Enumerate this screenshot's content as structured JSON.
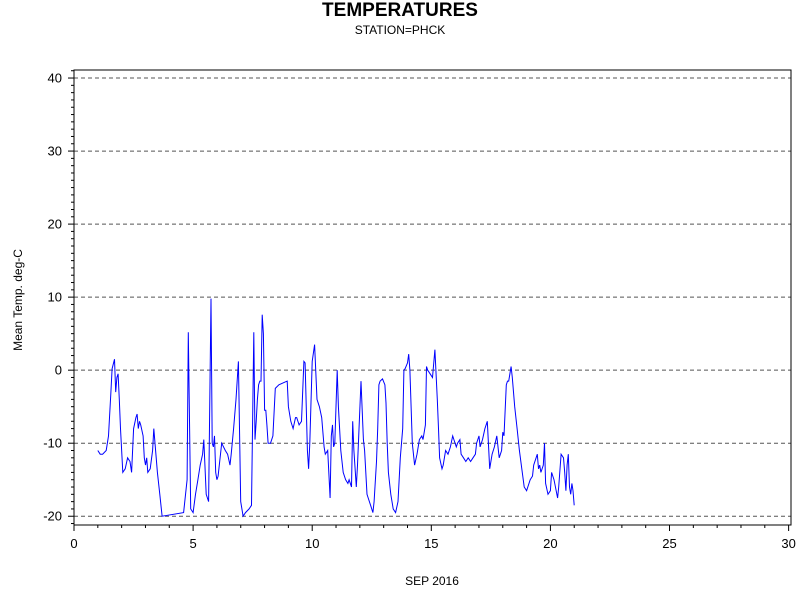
{
  "chart_data": {
    "type": "line",
    "title": "TEMPERATURES",
    "subtitle": "STATION=PHCK",
    "xlabel": "SEP 2016",
    "ylabel": "Mean Temp. deg-C",
    "xlim": [
      0,
      30.1
    ],
    "ylim": [
      -21.2,
      41.1
    ],
    "xticks": [
      0,
      5,
      10,
      15,
      20,
      25,
      30
    ],
    "yticks": [
      -20,
      -10,
      0,
      10,
      20,
      30,
      40
    ],
    "grid": "horizontal dashed",
    "line_color": "#0000ff",
    "series": [
      {
        "values": [
          [
            1.0,
            -11.0
          ],
          [
            1.1,
            -11.5
          ],
          [
            1.2,
            -11.5
          ],
          [
            1.35,
            -11.0
          ],
          [
            1.45,
            -9.0
          ],
          [
            1.55,
            -3.0
          ],
          [
            1.6,
            0.2
          ],
          [
            1.7,
            1.5
          ],
          [
            1.75,
            -3.0
          ],
          [
            1.8,
            -1.0
          ],
          [
            1.85,
            -0.5
          ],
          [
            1.9,
            -4.0
          ],
          [
            1.95,
            -8.0
          ],
          [
            2.05,
            -14.0
          ],
          [
            2.15,
            -13.5
          ],
          [
            2.25,
            -12.0
          ],
          [
            2.35,
            -12.5
          ],
          [
            2.42,
            -14.0
          ],
          [
            2.5,
            -8.0
          ],
          [
            2.6,
            -6.5
          ],
          [
            2.65,
            -6.0
          ],
          [
            2.7,
            -8.0
          ],
          [
            2.75,
            -7.0
          ],
          [
            2.8,
            -7.5
          ],
          [
            2.9,
            -9.0
          ],
          [
            2.95,
            -12.0
          ],
          [
            3.0,
            -13.0
          ],
          [
            3.05,
            -12.0
          ],
          [
            3.1,
            -14.0
          ],
          [
            3.2,
            -13.5
          ],
          [
            3.3,
            -11.0
          ],
          [
            3.35,
            -8.0
          ],
          [
            3.45,
            -12.0
          ],
          [
            3.5,
            -14.0
          ],
          [
            3.6,
            -17.0
          ],
          [
            3.7,
            -20.0
          ],
          [
            4.6,
            -19.5
          ],
          [
            4.75,
            -15.0
          ],
          [
            4.8,
            5.2
          ],
          [
            4.9,
            -19.0
          ],
          [
            5.0,
            -19.5
          ],
          [
            5.1,
            -17.0
          ],
          [
            5.2,
            -15.0
          ],
          [
            5.3,
            -13.0
          ],
          [
            5.4,
            -11.5
          ],
          [
            5.45,
            -9.5
          ],
          [
            5.55,
            -17.0
          ],
          [
            5.65,
            -18.0
          ],
          [
            5.75,
            9.8
          ],
          [
            5.8,
            -10.0
          ],
          [
            5.85,
            -10.5
          ],
          [
            5.9,
            -9.0
          ],
          [
            5.95,
            -14.0
          ],
          [
            6.0,
            -15.0
          ],
          [
            6.05,
            -14.5
          ],
          [
            6.1,
            -13.0
          ],
          [
            6.2,
            -10.0
          ],
          [
            6.35,
            -11.0
          ],
          [
            6.45,
            -11.5
          ],
          [
            6.55,
            -13.0
          ],
          [
            6.6,
            -11.5
          ],
          [
            6.7,
            -8.0
          ],
          [
            6.8,
            -4.0
          ],
          [
            6.9,
            1.2
          ],
          [
            7.0,
            -18.0
          ],
          [
            7.1,
            -20.0
          ],
          [
            7.2,
            -19.5
          ],
          [
            7.35,
            -19.0
          ],
          [
            7.45,
            -18.5
          ],
          [
            7.55,
            5.2
          ],
          [
            7.6,
            -9.5
          ],
          [
            7.65,
            -7.0
          ],
          [
            7.7,
            -4.0
          ],
          [
            7.75,
            -2.0
          ],
          [
            7.8,
            -1.5
          ],
          [
            7.85,
            -1.5
          ],
          [
            7.9,
            7.6
          ],
          [
            7.95,
            5.0
          ],
          [
            8.0,
            -5.5
          ],
          [
            8.05,
            -5.5
          ],
          [
            8.1,
            -7.5
          ],
          [
            8.15,
            -10.0
          ],
          [
            8.25,
            -10.0
          ],
          [
            8.35,
            -9.0
          ],
          [
            8.45,
            -2.5
          ],
          [
            8.6,
            -2.0
          ],
          [
            8.95,
            -1.5
          ],
          [
            9.0,
            -5.0
          ],
          [
            9.1,
            -7.0
          ],
          [
            9.2,
            -8.0
          ],
          [
            9.3,
            -6.5
          ],
          [
            9.35,
            -6.5
          ],
          [
            9.45,
            -7.5
          ],
          [
            9.55,
            -7.0
          ],
          [
            9.65,
            1.2
          ],
          [
            9.7,
            1.0
          ],
          [
            9.8,
            -11.0
          ],
          [
            9.85,
            -13.5
          ],
          [
            9.9,
            -10.0
          ],
          [
            10.0,
            1.2
          ],
          [
            10.1,
            3.5
          ],
          [
            10.2,
            -4.0
          ],
          [
            10.3,
            -5.0
          ],
          [
            10.4,
            -6.5
          ],
          [
            10.5,
            -10.5
          ],
          [
            10.55,
            -11.5
          ],
          [
            10.65,
            -11.0
          ],
          [
            10.75,
            -17.5
          ],
          [
            10.8,
            -9.0
          ],
          [
            10.85,
            -7.5
          ],
          [
            10.9,
            -10.5
          ],
          [
            10.95,
            -10.0
          ],
          [
            11.05,
            0.0
          ],
          [
            11.1,
            -5.0
          ],
          [
            11.2,
            -11.0
          ],
          [
            11.3,
            -14.0
          ],
          [
            11.4,
            -15.0
          ],
          [
            11.5,
            -15.5
          ],
          [
            11.55,
            -15.0
          ],
          [
            11.65,
            -16.0
          ],
          [
            11.7,
            -7.0
          ],
          [
            11.75,
            -11.0
          ],
          [
            11.85,
            -16.0
          ],
          [
            11.9,
            -13.0
          ],
          [
            12.05,
            -1.5
          ],
          [
            12.15,
            -9.5
          ],
          [
            12.2,
            -11.0
          ],
          [
            12.3,
            -17.0
          ],
          [
            12.35,
            -17.5
          ],
          [
            12.45,
            -18.5
          ],
          [
            12.55,
            -19.5
          ],
          [
            12.6,
            -18.0
          ],
          [
            12.7,
            -12.5
          ],
          [
            12.75,
            -8.0
          ],
          [
            12.8,
            -2.0
          ],
          [
            12.85,
            -1.5
          ],
          [
            12.95,
            -1.2
          ],
          [
            13.05,
            -2.0
          ],
          [
            13.1,
            -4.5
          ],
          [
            13.15,
            -10.0
          ],
          [
            13.2,
            -14.0
          ],
          [
            13.3,
            -17.0
          ],
          [
            13.4,
            -19.0
          ],
          [
            13.5,
            -19.5
          ],
          [
            13.6,
            -18.0
          ],
          [
            13.7,
            -12.0
          ],
          [
            13.8,
            -8.0
          ],
          [
            13.85,
            0.0
          ],
          [
            13.9,
            0.2
          ],
          [
            14.0,
            1.0
          ],
          [
            14.05,
            2.2
          ],
          [
            14.1,
            0.0
          ],
          [
            14.2,
            -10.0
          ],
          [
            14.3,
            -13.0
          ],
          [
            14.4,
            -11.5
          ],
          [
            14.5,
            -9.5
          ],
          [
            14.6,
            -9.0
          ],
          [
            14.65,
            -9.5
          ],
          [
            14.75,
            -7.5
          ],
          [
            14.8,
            0.5
          ],
          [
            14.85,
            0.0
          ],
          [
            14.95,
            -0.5
          ],
          [
            15.05,
            -1.0
          ],
          [
            15.15,
            2.8
          ],
          [
            15.25,
            -4.0
          ],
          [
            15.3,
            -8.0
          ],
          [
            15.35,
            -12.0
          ],
          [
            15.45,
            -13.5
          ],
          [
            15.5,
            -13.0
          ],
          [
            15.6,
            -11.0
          ],
          [
            15.7,
            -11.5
          ],
          [
            15.8,
            -10.5
          ],
          [
            15.9,
            -9.0
          ],
          [
            15.95,
            -9.5
          ],
          [
            16.05,
            -10.5
          ],
          [
            16.1,
            -10.0
          ],
          [
            16.2,
            -9.5
          ],
          [
            16.25,
            -11.5
          ],
          [
            16.35,
            -12.0
          ],
          [
            16.45,
            -12.5
          ],
          [
            16.55,
            -12.0
          ],
          [
            16.65,
            -12.5
          ],
          [
            16.75,
            -12.0
          ],
          [
            16.85,
            -11.5
          ],
          [
            16.9,
            -10.0
          ],
          [
            17.0,
            -9.0
          ],
          [
            17.05,
            -10.5
          ],
          [
            17.15,
            -9.5
          ],
          [
            17.25,
            -8.0
          ],
          [
            17.35,
            -7.0
          ],
          [
            17.45,
            -13.5
          ],
          [
            17.55,
            -11.5
          ],
          [
            17.65,
            -10.5
          ],
          [
            17.75,
            -9.0
          ],
          [
            17.85,
            -12.0
          ],
          [
            17.95,
            -11.0
          ],
          [
            18.0,
            -8.5
          ],
          [
            18.05,
            -9.0
          ],
          [
            18.15,
            -2.0
          ],
          [
            18.2,
            -1.5
          ],
          [
            18.25,
            -1.5
          ],
          [
            18.35,
            0.5
          ],
          [
            18.4,
            -1.0
          ],
          [
            18.5,
            -5.0
          ],
          [
            18.6,
            -8.0
          ],
          [
            18.7,
            -11.0
          ],
          [
            18.8,
            -13.5
          ],
          [
            18.9,
            -16.0
          ],
          [
            19.0,
            -16.5
          ],
          [
            19.1,
            -15.5
          ],
          [
            19.15,
            -15.0
          ],
          [
            19.25,
            -14.5
          ],
          [
            19.3,
            -13.0
          ],
          [
            19.4,
            -12.0
          ],
          [
            19.45,
            -11.5
          ],
          [
            19.5,
            -13.5
          ],
          [
            19.55,
            -13.0
          ],
          [
            19.6,
            -14.0
          ],
          [
            19.7,
            -13.0
          ],
          [
            19.75,
            -10.0
          ],
          [
            19.8,
            -15.5
          ],
          [
            19.9,
            -17.0
          ],
          [
            20.0,
            -16.5
          ],
          [
            20.05,
            -14.0
          ],
          [
            20.15,
            -15.0
          ],
          [
            20.3,
            -17.5
          ],
          [
            20.35,
            -16.0
          ],
          [
            20.45,
            -11.5
          ],
          [
            20.55,
            -12.0
          ],
          [
            20.6,
            -14.0
          ],
          [
            20.65,
            -16.5
          ],
          [
            20.7,
            -13.0
          ],
          [
            20.75,
            -11.5
          ],
          [
            20.8,
            -16.0
          ],
          [
            20.85,
            -17.0
          ],
          [
            20.9,
            -15.5
          ],
          [
            20.95,
            -16.5
          ],
          [
            21.0,
            -18.5
          ]
        ]
      }
    ]
  }
}
